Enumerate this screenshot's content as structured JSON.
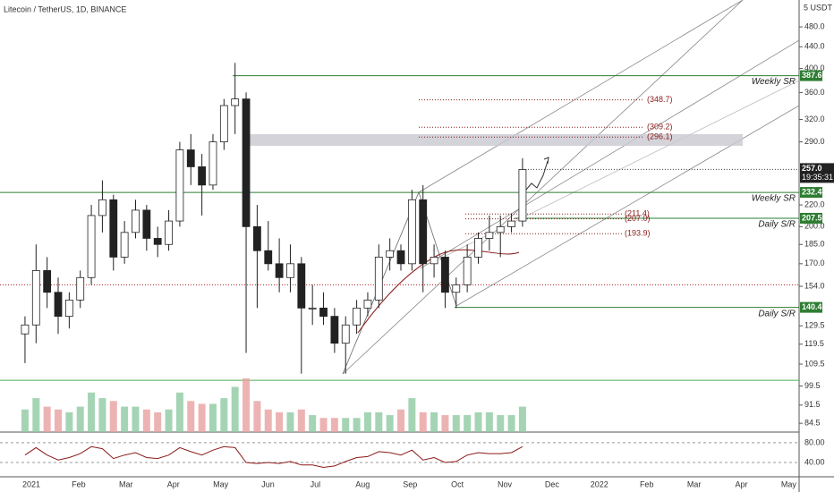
{
  "chart_data": {
    "type": "candlestick",
    "title": "Litecoin / TetherUS, 1D, BINANCE",
    "unit_label": "5 USDT",
    "x_labels": [
      "2021",
      "Feb",
      "Mar",
      "Apr",
      "May",
      "Jun",
      "Jul",
      "Aug",
      "Sep",
      "Oct",
      "Nov",
      "Dec",
      "2022",
      "Feb",
      "Mar",
      "Apr",
      "May"
    ],
    "open": [
      125,
      130,
      165,
      150,
      135,
      145,
      160,
      210,
      225,
      175,
      195,
      215,
      190,
      185,
      205,
      280,
      260,
      240,
      290,
      340,
      350,
      200,
      180,
      170,
      160,
      170,
      140,
      140,
      135,
      120,
      130,
      140,
      145,
      175,
      180,
      170,
      225,
      170,
      175,
      150,
      155,
      175,
      190,
      195,
      200,
      205
    ],
    "high": [
      135,
      185,
      175,
      160,
      150,
      165,
      220,
      245,
      230,
      205,
      225,
      220,
      200,
      215,
      290,
      300,
      275,
      300,
      350,
      410,
      360,
      220,
      205,
      190,
      185,
      175,
      155,
      150,
      140,
      135,
      145,
      150,
      185,
      190,
      185,
      235,
      240,
      185,
      180,
      160,
      185,
      195,
      210,
      210,
      212,
      270
    ],
    "low": [
      110,
      120,
      140,
      125,
      128,
      140,
      155,
      195,
      165,
      170,
      190,
      180,
      175,
      180,
      200,
      240,
      210,
      235,
      280,
      300,
      115,
      140,
      165,
      150,
      150,
      105,
      130,
      130,
      115,
      105,
      125,
      135,
      140,
      165,
      165,
      165,
      150,
      160,
      140,
      140,
      150,
      170,
      180,
      175,
      195,
      200
    ],
    "close": [
      130,
      165,
      150,
      135,
      145,
      160,
      210,
      225,
      175,
      195,
      215,
      190,
      185,
      205,
      280,
      260,
      240,
      290,
      340,
      350,
      200,
      180,
      170,
      160,
      170,
      140,
      140,
      135,
      120,
      130,
      140,
      145,
      175,
      180,
      170,
      225,
      170,
      175,
      150,
      155,
      175,
      190,
      195,
      200,
      205,
      257
    ],
    "volume": [
      40,
      60,
      45,
      40,
      35,
      45,
      70,
      60,
      55,
      45,
      45,
      40,
      35,
      40,
      70,
      55,
      50,
      50,
      60,
      80,
      95,
      55,
      40,
      35,
      35,
      40,
      30,
      25,
      25,
      25,
      25,
      35,
      35,
      30,
      40,
      60,
      35,
      35,
      30,
      30,
      30,
      35,
      35,
      30,
      30,
      45
    ],
    "log_scale": true,
    "ylim": [
      81.3,
      540
    ],
    "yticks": [
      {
        "value": 480,
        "label": "480.0"
      },
      {
        "value": 440,
        "label": "440.0"
      },
      {
        "value": 400,
        "label": "400.0"
      },
      {
        "value": 360,
        "label": "360.0"
      },
      {
        "value": 320,
        "label": "320.0"
      },
      {
        "value": 290,
        "label": "290.0"
      },
      {
        "value": 220,
        "label": "220.0"
      },
      {
        "value": 200,
        "label": "200.0"
      },
      {
        "value": 185,
        "label": "185.0"
      },
      {
        "value": 170,
        "label": "170.0"
      },
      {
        "value": 154,
        "label": "154.0"
      },
      129.5,
      119.5,
      109.5,
      99.5,
      91.5,
      84.5
    ],
    "levels": [
      {
        "value": 387.6,
        "label": "387.6",
        "note": "Weekly SR"
      },
      {
        "value": 232.4,
        "label": "232.4",
        "note": "Weekly SR"
      },
      {
        "value": 207.5,
        "label": "207.5",
        "note": "Daily S/R"
      },
      {
        "value": 140.4,
        "label": "140.4",
        "note": "Daily S/R"
      }
    ],
    "targets": [
      {
        "value": 348.7,
        "label": "(348.7)"
      },
      {
        "value": 309.2,
        "label": "(309.2)"
      },
      {
        "value": 296.1,
        "label": "(296.1)"
      },
      {
        "value": 211.4,
        "label": "(211.4)"
      },
      {
        "value": 207.0,
        "label": "(207.0)"
      },
      {
        "value": 193.9,
        "label": "(193.9)"
      }
    ],
    "zone": [
      285,
      300
    ],
    "horizontal_lines": [
      {
        "value": 102,
        "color": "#4caf50"
      },
      {
        "value": 155,
        "color": "#b71c1c"
      }
    ],
    "last_price": {
      "value": 257.0,
      "label": "257.0"
    },
    "countdown": "19:35:31",
    "rsi": {
      "values": [
        55,
        70,
        55,
        45,
        50,
        58,
        72,
        68,
        48,
        55,
        60,
        50,
        48,
        55,
        70,
        62,
        55,
        65,
        72,
        70,
        40,
        38,
        40,
        38,
        42,
        35,
        35,
        30,
        33,
        42,
        50,
        52,
        62,
        60,
        55,
        65,
        45,
        50,
        40,
        42,
        55,
        60,
        58,
        58,
        60,
        72
      ],
      "ylim": [
        11,
        98
      ],
      "yticks": [
        {
          "value": 80,
          "label": "80.00"
        },
        {
          "value": 40,
          "label": "40.00"
        }
      ]
    }
  }
}
